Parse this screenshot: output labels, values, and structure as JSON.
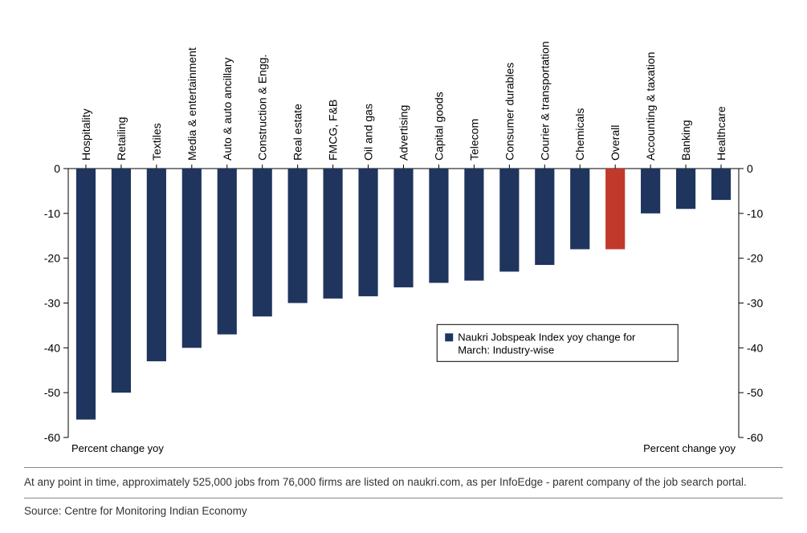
{
  "chart": {
    "type": "bar",
    "categories": [
      "Hospitality",
      "Retailing",
      "Textiles",
      "Media & entertainment",
      "Auto & auto ancillary",
      "Construction & Engg.",
      "Real estate",
      "FMCG, F&B",
      "Oil and gas",
      "Advertising",
      "Capital goods",
      "Telecom",
      "Consumer durables",
      "Courier & transportation",
      "Chemicals",
      "Overall",
      "Accounting & taxation",
      "Banking",
      "Healthcare"
    ],
    "values": [
      -56,
      -50,
      -43,
      -40,
      -37,
      -33,
      -30,
      -29,
      -28.5,
      -26.5,
      -25.5,
      -25,
      -23,
      -21.5,
      -18,
      -18,
      -10,
      -9,
      -7
    ],
    "bar_colors": [
      "#1f355e",
      "#1f355e",
      "#1f355e",
      "#1f355e",
      "#1f355e",
      "#1f355e",
      "#1f355e",
      "#1f355e",
      "#1f355e",
      "#1f355e",
      "#1f355e",
      "#1f355e",
      "#1f355e",
      "#1f355e",
      "#1f355e",
      "#c1392b",
      "#1f355e",
      "#1f355e",
      "#1f355e"
    ],
    "ylim": [
      -60,
      0
    ],
    "ytick_step": 10,
    "bar_width": 0.55,
    "background_color": "#ffffff",
    "axis_color": "#000000",
    "category_fontsize": 14,
    "tick_fontsize": 14,
    "axis_title_left": "Percent change yoy",
    "axis_title_right": "Percent change yoy",
    "legend": {
      "marker_color": "#1f355e",
      "lines": [
        "Naukri Jobspeak Index yoy change for",
        "March: Industry-wise"
      ]
    }
  },
  "note_text": "At any point in time, approximately 525,000 jobs from 76,000 firms are listed on naukri.com, as per InfoEdge - parent company of the job search portal.",
  "source_text": "Source: Centre for Monitoring Indian Economy"
}
